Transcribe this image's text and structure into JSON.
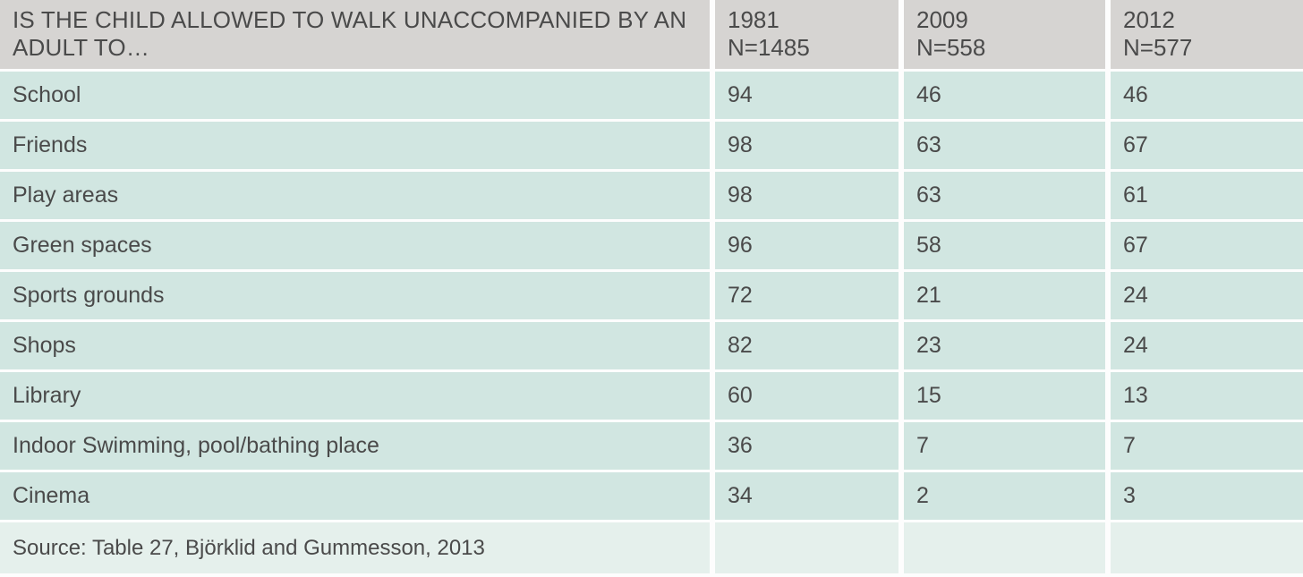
{
  "chart_data": {
    "type": "table",
    "title": "IS THE CHILD ALLOWED TO WALK UNACCOMPANIED BY AN ADULT TO…",
    "categories": [
      "School",
      "Friends",
      "Play areas",
      "Green spaces",
      "Sports grounds",
      "Shops",
      "Library",
      "Indoor Swimming, pool/bathing place",
      "Cinema"
    ],
    "series": [
      {
        "name": "1981",
        "n_label": "N=1485",
        "values": [
          94,
          98,
          98,
          96,
          72,
          82,
          60,
          36,
          34
        ]
      },
      {
        "name": "2009",
        "n_label": "N=558",
        "values": [
          46,
          63,
          63,
          58,
          21,
          23,
          15,
          7,
          2
        ]
      },
      {
        "name": "2012",
        "n_label": "N=577",
        "values": [
          46,
          67,
          61,
          67,
          24,
          24,
          13,
          7,
          3
        ]
      }
    ],
    "source": "Source: Table 27, Björklid and Gummesson, 2013",
    "layout": {
      "grid": "off",
      "legend": "column headers",
      "values_are": "percent allowed"
    }
  },
  "colors": {
    "header_bg": "#d6d4d2",
    "row_bg": "#d1e6e1",
    "source_row_bg": "#e5f0ec",
    "gap": "#fdfdfd",
    "text": "#4a4a4a"
  }
}
